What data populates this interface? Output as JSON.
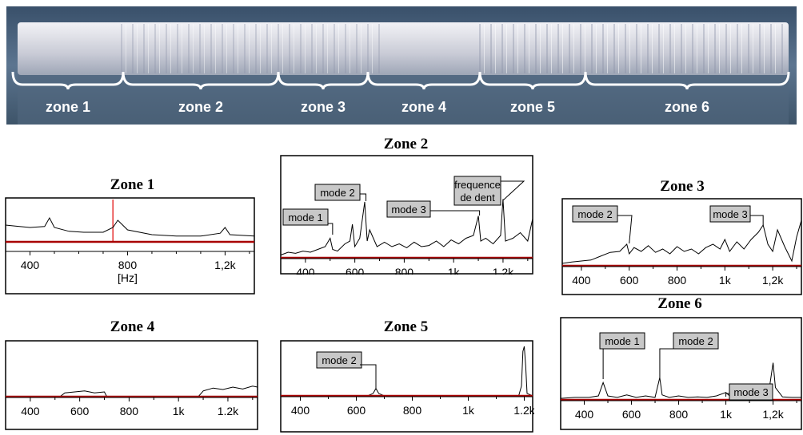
{
  "photo": {
    "zone_labels": [
      "zone 1",
      "zone 2",
      "zone 3",
      "zone 4",
      "zone 5",
      "zone 6"
    ]
  },
  "colors": {
    "baseline": "#a80000",
    "trace": "#000000",
    "marker": "#e00000",
    "label_bg": "#c8c8c8"
  },
  "chart_data": [
    {
      "id": "zone1",
      "type": "line",
      "title": "Zone 1",
      "xlabel": "[Hz]",
      "xlim": [
        300,
        1320
      ],
      "x_ticks": [
        400,
        800,
        1200
      ],
      "x_tick_labels": [
        "400",
        "800",
        "1,2k"
      ],
      "marker_x": 740,
      "series": [
        {
          "x": [
            300,
            340,
            400,
            460,
            480,
            500,
            560,
            620,
            700,
            740,
            760,
            800,
            900,
            1000,
            1100,
            1180,
            1200,
            1220,
            1320
          ],
          "y": [
            0.35,
            0.33,
            0.3,
            0.32,
            0.5,
            0.3,
            0.22,
            0.2,
            0.2,
            0.3,
            0.45,
            0.25,
            0.15,
            0.12,
            0.12,
            0.18,
            0.3,
            0.15,
            0.12
          ]
        }
      ],
      "annotations": []
    },
    {
      "id": "zone2",
      "type": "line",
      "title": "Zone 2",
      "xlim": [
        300,
        1320
      ],
      "x_ticks": [
        400,
        600,
        800,
        1000,
        1200
      ],
      "x_tick_labels": [
        "400",
        "600",
        "800",
        "1k",
        "1,2k"
      ],
      "series": [
        {
          "x": [
            300,
            330,
            360,
            390,
            420,
            450,
            480,
            500,
            510,
            530,
            560,
            580,
            590,
            600,
            620,
            640,
            650,
            660,
            690,
            720,
            750,
            780,
            810,
            840,
            870,
            900,
            930,
            960,
            990,
            1020,
            1050,
            1080,
            1100,
            1110,
            1130,
            1160,
            1190,
            1200,
            1210,
            1240,
            1270,
            1300,
            1320
          ],
          "y": [
            0.05,
            0.1,
            0.08,
            0.12,
            0.1,
            0.15,
            0.2,
            0.35,
            0.15,
            0.12,
            0.25,
            0.3,
            0.6,
            0.2,
            0.35,
            1.0,
            0.3,
            0.5,
            0.2,
            0.28,
            0.2,
            0.25,
            0.18,
            0.28,
            0.2,
            0.22,
            0.3,
            0.2,
            0.32,
            0.25,
            0.35,
            0.4,
            0.75,
            0.3,
            0.35,
            0.25,
            0.4,
            1.05,
            0.3,
            0.35,
            0.45,
            0.3,
            0.7
          ]
        }
      ],
      "annotations": [
        {
          "text": "mode 1",
          "x": 510
        },
        {
          "text": "mode 2",
          "x": 645
        },
        {
          "text": "mode 3",
          "x": 1105
        },
        {
          "text": "frequence de dent",
          "x": 1200
        }
      ]
    },
    {
      "id": "zone3",
      "type": "line",
      "title": "Zone 3",
      "xlim": [
        320,
        1320
      ],
      "x_ticks": [
        400,
        600,
        800,
        1000,
        1200
      ],
      "x_tick_labels": [
        "400",
        "600",
        "800",
        "1k",
        "1,2k"
      ],
      "series": [
        {
          "x": [
            320,
            360,
            400,
            440,
            480,
            520,
            560,
            590,
            600,
            620,
            650,
            680,
            710,
            740,
            770,
            800,
            830,
            860,
            890,
            920,
            950,
            980,
            1000,
            1020,
            1050,
            1080,
            1110,
            1140,
            1160,
            1180,
            1200,
            1220,
            1250,
            1280,
            1300,
            1320
          ],
          "y": [
            0.05,
            0.08,
            0.1,
            0.12,
            0.2,
            0.28,
            0.3,
            0.45,
            0.25,
            0.38,
            0.3,
            0.42,
            0.28,
            0.35,
            0.25,
            0.4,
            0.3,
            0.35,
            0.25,
            0.38,
            0.45,
            0.35,
            0.55,
            0.3,
            0.5,
            0.35,
            0.55,
            0.7,
            0.85,
            0.45,
            0.3,
            0.75,
            0.4,
            0.1,
            0.6,
            0.95
          ]
        }
      ],
      "annotations": [
        {
          "text": "mode 2",
          "x": 600
        },
        {
          "text": "mode 3",
          "x": 1160
        }
      ]
    },
    {
      "id": "zone4",
      "type": "line",
      "title": "Zone 4",
      "xlim": [
        300,
        1320
      ],
      "x_ticks": [
        400,
        600,
        800,
        1000,
        1200
      ],
      "x_tick_labels": [
        "400",
        "600",
        "800",
        "1k",
        "1.2k"
      ],
      "series": [
        {
          "x": [
            300,
            520,
            540,
            580,
            620,
            660,
            700,
            710,
            1000,
            1080,
            1100,
            1140,
            1180,
            1220,
            1260,
            1300,
            1320
          ],
          "y": [
            0,
            0,
            0.08,
            0.1,
            0.12,
            0.08,
            0.1,
            0,
            0,
            0,
            0.12,
            0.18,
            0.15,
            0.2,
            0.16,
            0.22,
            0.2
          ]
        }
      ],
      "annotations": []
    },
    {
      "id": "zone5",
      "type": "line",
      "title": "Zone 5",
      "xlim": [
        330,
        1230
      ],
      "x_ticks": [
        400,
        600,
        800,
        1000,
        1200
      ],
      "x_tick_labels": [
        "400",
        "600",
        "800",
        "1k",
        "1.2k"
      ],
      "series": [
        {
          "x": [
            330,
            640,
            660,
            670,
            680,
            700,
            1180,
            1190,
            1195,
            1200,
            1205,
            1210,
            1230
          ],
          "y": [
            0,
            0,
            0.05,
            0.15,
            0.05,
            0,
            0,
            0.2,
            0.9,
            1.0,
            0.6,
            0.05,
            0
          ]
        }
      ],
      "annotations": [
        {
          "text": "mode 2",
          "x": 670
        }
      ]
    },
    {
      "id": "zone6",
      "type": "line",
      "title": "Zone 6",
      "xlim": [
        300,
        1320
      ],
      "x_ticks": [
        400,
        600,
        800,
        1000,
        1200
      ],
      "x_tick_labels": [
        "400",
        "600",
        "800",
        "1k",
        "1,2k"
      ],
      "series": [
        {
          "x": [
            300,
            360,
            420,
            460,
            480,
            500,
            540,
            580,
            620,
            660,
            700,
            720,
            730,
            760,
            800,
            840,
            880,
            920,
            960,
            1000,
            1020,
            1060,
            1100,
            1140,
            1180,
            1200,
            1210,
            1240,
            1280,
            1320
          ],
          "y": [
            0.03,
            0.05,
            0.05,
            0.08,
            0.35,
            0.08,
            0.05,
            0.1,
            0.05,
            0.08,
            0.05,
            0.45,
            0.1,
            0.05,
            0.08,
            0.05,
            0.06,
            0.05,
            0.08,
            0.15,
            0.06,
            0.05,
            0.05,
            0.06,
            0.1,
            0.75,
            0.25,
            0.06,
            0.05,
            0.05
          ]
        }
      ],
      "annotations": [
        {
          "text": "mode 1",
          "x": 480
        },
        {
          "text": "mode 2",
          "x": 720
        },
        {
          "text": "mode 3",
          "x": 1000
        }
      ]
    }
  ]
}
